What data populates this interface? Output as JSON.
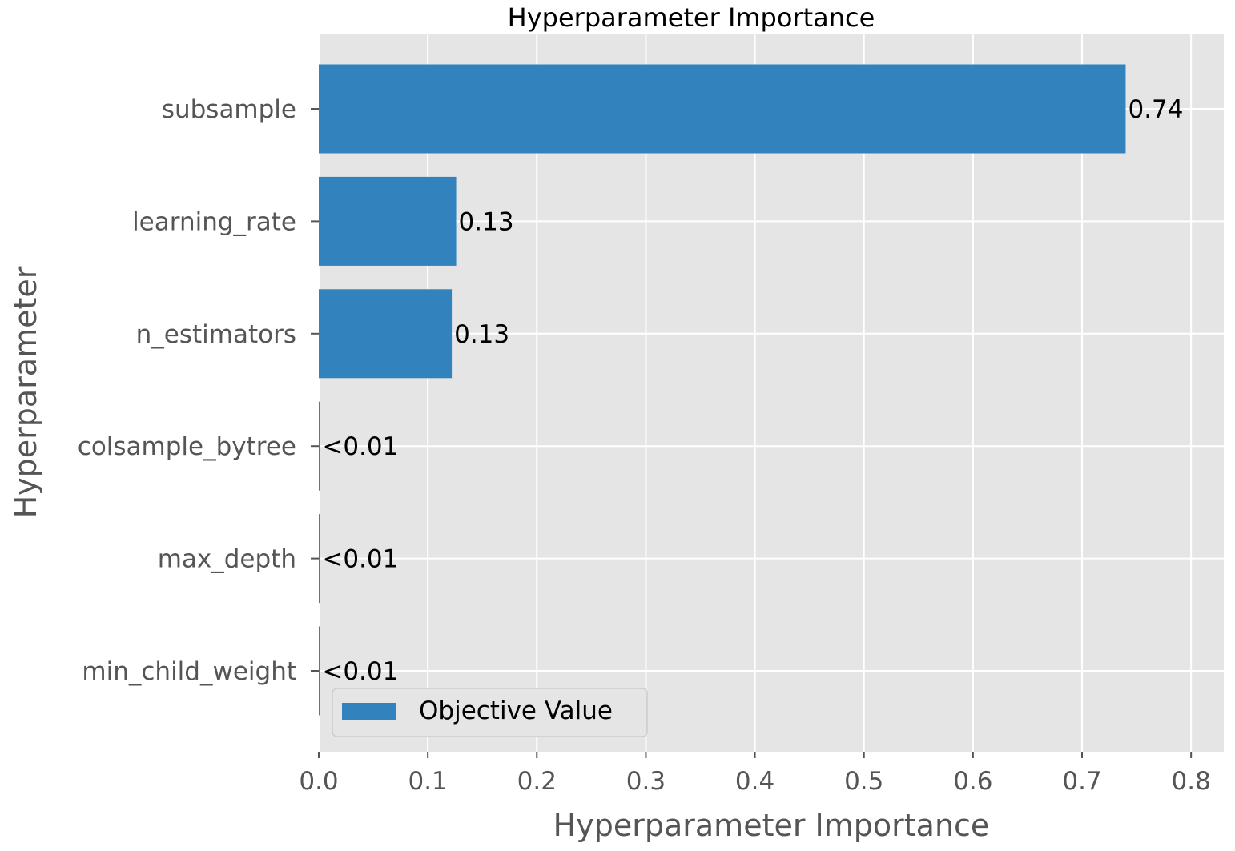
{
  "chart_data": {
    "type": "bar",
    "orientation": "horizontal",
    "title": "Hyperparameter Importance",
    "xlabel": "Hyperparameter Importance",
    "ylabel": "Hyperparameter",
    "categories": [
      "subsample",
      "learning_rate",
      "n_estimators",
      "colsample_bytree",
      "max_depth",
      "min_child_weight"
    ],
    "series": [
      {
        "name": "Objective Value",
        "values": [
          0.74,
          0.126,
          0.122,
          0.001,
          0.001,
          0.001
        ],
        "labels": [
          "0.74",
          "0.13",
          "0.13",
          "<0.01",
          "<0.01",
          "<0.01"
        ]
      }
    ],
    "xlim": [
      0.0,
      0.83
    ],
    "xticks": [
      0.0,
      0.1,
      0.2,
      0.3,
      0.4,
      0.5,
      0.6,
      0.7,
      0.8
    ],
    "xtick_labels": [
      "0.0",
      "0.1",
      "0.2",
      "0.3",
      "0.4",
      "0.5",
      "0.6",
      "0.7",
      "0.8"
    ],
    "grid": true,
    "legend": "bottom-left",
    "colors": {
      "bar": "#3182bd",
      "plot_bg": "#e5e5e5",
      "grid": "#ffffff"
    }
  }
}
